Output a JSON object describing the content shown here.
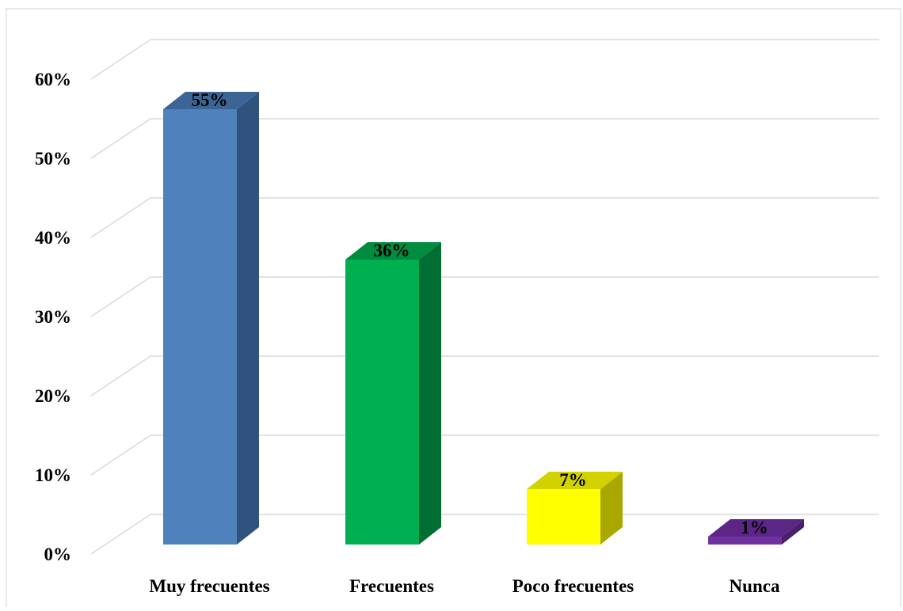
{
  "chart_data": {
    "type": "bar",
    "categories": [
      "Muy frecuentes",
      "Frecuentes",
      "Poco frecuentes",
      "Nunca"
    ],
    "values": [
      55,
      36,
      7,
      1
    ],
    "data_labels": [
      "55%",
      "36%",
      "7%",
      "1%"
    ],
    "yticks": [
      0,
      10,
      20,
      30,
      40,
      50,
      60
    ],
    "ytick_labels": [
      "0%",
      "10%",
      "20%",
      "30%",
      "40%",
      "50%",
      "60%"
    ],
    "ylim": [
      0,
      60
    ],
    "grid": true,
    "style": "3d-column",
    "legend": "none",
    "title": "",
    "xlabel": "",
    "ylabel": "",
    "colors": {
      "front": [
        "#4f81bd",
        "#00b050",
        "#ffff00",
        "#7030a0"
      ],
      "side": [
        "#2f537d",
        "#006e32",
        "#a8a800",
        "#4a1f6b"
      ],
      "top": [
        "#3c6596",
        "#008c3e",
        "#d2d200",
        "#5c2686"
      ],
      "grid": "#d9d9d9",
      "border": "#d0d0d0"
    }
  }
}
